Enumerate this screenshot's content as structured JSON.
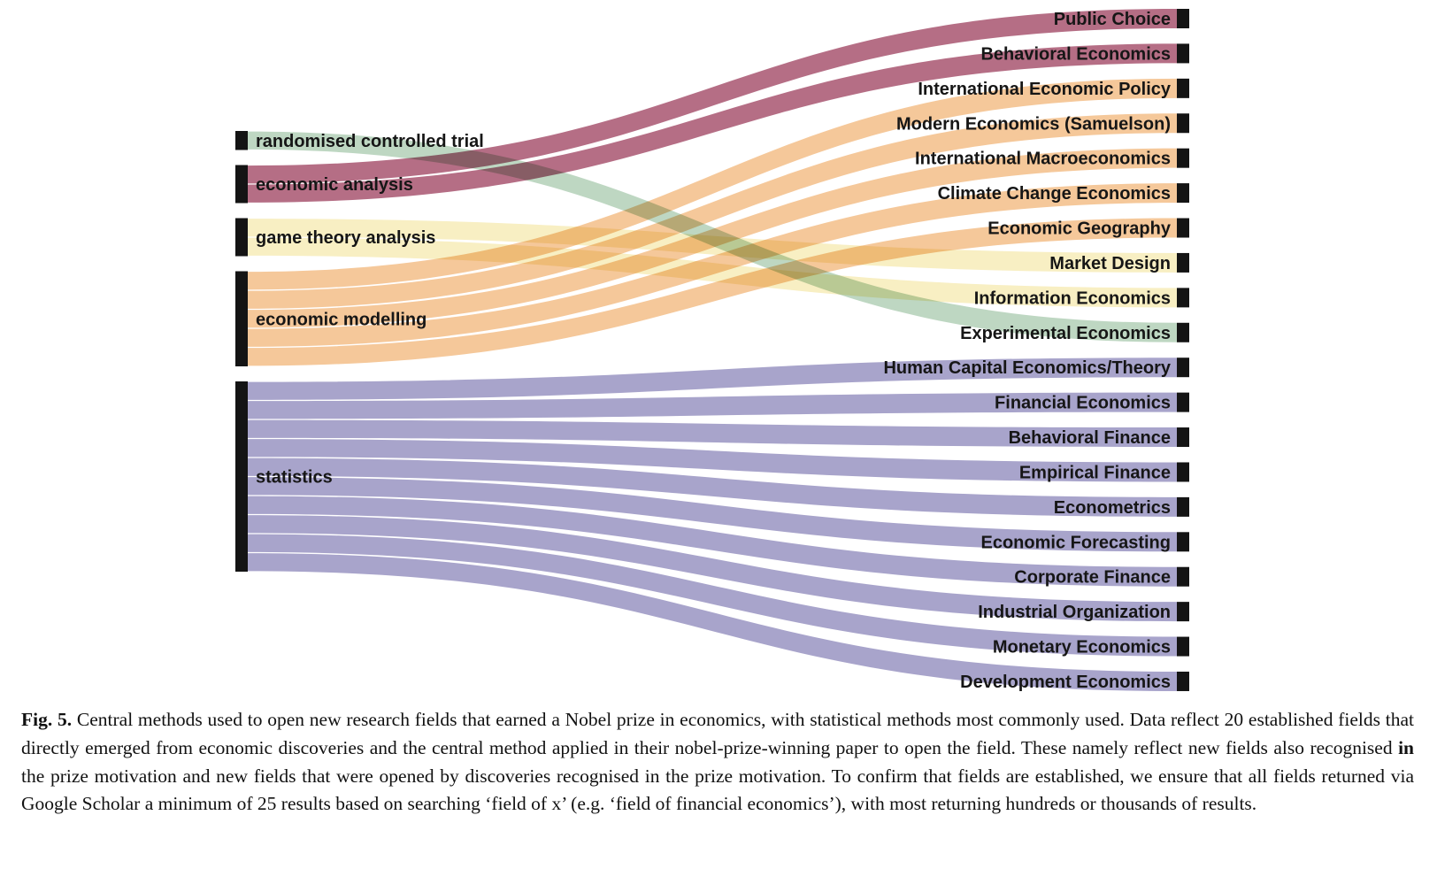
{
  "chart_data": {
    "type": "sankey",
    "title": "Central methods used to open new research fields that earned a Nobel prize in economics",
    "orientation": "left-sources-right-targets",
    "node_bar_color": "#141414",
    "sources": [
      {
        "id": "randomised-controlled-trial",
        "label": "randomised controlled trial",
        "color": "#bed7c2",
        "value": 1
      },
      {
        "id": "economic-analysis",
        "label": "economic analysis",
        "color": "#b56e85",
        "value": 2
      },
      {
        "id": "game-theory-analysis",
        "label": "game theory analysis",
        "color": "#f8efc3",
        "value": 2
      },
      {
        "id": "economic-modelling",
        "label": "economic modelling",
        "color": "#f5c89a",
        "value": 5
      },
      {
        "id": "statistics",
        "label": "statistics",
        "color": "#a8a4cb",
        "value": 10
      }
    ],
    "targets": [
      {
        "id": "public-choice",
        "label": "Public Choice",
        "value": 1
      },
      {
        "id": "behavioral-economics",
        "label": "Behavioral Economics",
        "value": 1
      },
      {
        "id": "international-economic-policy",
        "label": "International Economic Policy",
        "value": 1
      },
      {
        "id": "modern-economics-samuelson",
        "label": "Modern Economics (Samuelson)",
        "value": 1
      },
      {
        "id": "international-macroeconomics",
        "label": "International Macroeconomics",
        "value": 1
      },
      {
        "id": "climate-change-economics",
        "label": "Climate Change Economics",
        "value": 1
      },
      {
        "id": "economic-geography",
        "label": "Economic Geography",
        "value": 1
      },
      {
        "id": "market-design",
        "label": "Market Design",
        "value": 1
      },
      {
        "id": "information-economics",
        "label": "Information Economics",
        "value": 1
      },
      {
        "id": "experimental-economics",
        "label": "Experimental Economics",
        "value": 1
      },
      {
        "id": "human-capital-economics-theory",
        "label": "Human Capital Economics/Theory",
        "value": 1
      },
      {
        "id": "financial-economics",
        "label": "Financial Economics",
        "value": 1
      },
      {
        "id": "behavioral-finance",
        "label": "Behavioral Finance",
        "value": 1
      },
      {
        "id": "empirical-finance",
        "label": "Empirical Finance",
        "value": 1
      },
      {
        "id": "econometrics",
        "label": "Econometrics",
        "value": 1
      },
      {
        "id": "economic-forecasting",
        "label": "Economic Forecasting",
        "value": 1
      },
      {
        "id": "corporate-finance",
        "label": "Corporate Finance",
        "value": 1
      },
      {
        "id": "industrial-organization",
        "label": "Industrial Organization",
        "value": 1
      },
      {
        "id": "monetary-economics",
        "label": "Monetary Economics",
        "value": 1
      },
      {
        "id": "development-economics",
        "label": "Development Economics",
        "value": 1
      }
    ],
    "links": [
      {
        "source": "economic-analysis",
        "target": "public-choice",
        "value": 1
      },
      {
        "source": "economic-analysis",
        "target": "behavioral-economics",
        "value": 1
      },
      {
        "source": "economic-modelling",
        "target": "international-economic-policy",
        "value": 1
      },
      {
        "source": "economic-modelling",
        "target": "modern-economics-samuelson",
        "value": 1
      },
      {
        "source": "economic-modelling",
        "target": "international-macroeconomics",
        "value": 1
      },
      {
        "source": "economic-modelling",
        "target": "climate-change-economics",
        "value": 1
      },
      {
        "source": "economic-modelling",
        "target": "economic-geography",
        "value": 1
      },
      {
        "source": "game-theory-analysis",
        "target": "market-design",
        "value": 1
      },
      {
        "source": "game-theory-analysis",
        "target": "information-economics",
        "value": 1
      },
      {
        "source": "randomised-controlled-trial",
        "target": "experimental-economics",
        "value": 1
      },
      {
        "source": "statistics",
        "target": "human-capital-economics-theory",
        "value": 1
      },
      {
        "source": "statistics",
        "target": "financial-economics",
        "value": 1
      },
      {
        "source": "statistics",
        "target": "behavioral-finance",
        "value": 1
      },
      {
        "source": "statistics",
        "target": "empirical-finance",
        "value": 1
      },
      {
        "source": "statistics",
        "target": "econometrics",
        "value": 1
      },
      {
        "source": "statistics",
        "target": "economic-forecasting",
        "value": 1
      },
      {
        "source": "statistics",
        "target": "corporate-finance",
        "value": 1
      },
      {
        "source": "statistics",
        "target": "industrial-organization",
        "value": 1
      },
      {
        "source": "statistics",
        "target": "monetary-economics",
        "value": 1
      },
      {
        "source": "statistics",
        "target": "development-economics",
        "value": 1
      }
    ]
  },
  "caption": {
    "label": "Fig. 5.",
    "text_a": " Central methods used to open new research fields that earned a Nobel prize in economics, with statistical methods most commonly used. Data reflect 20 established fields that directly emerged from economic discoveries and the central method applied in their nobel-prize-winning paper to open the field. These namely reflect new fields also recognised ",
    "bold_word": "in",
    "text_b": " the prize motivation and new fields that were opened by discoveries recognised in the prize motivation. To confirm that fields are established, we ensure that all fields returned via Google Scholar a minimum of 25 results based on searching ‘field of x’ (e.g. ‘field of financial economics’), with most returning hundreds or thousands of results."
  }
}
